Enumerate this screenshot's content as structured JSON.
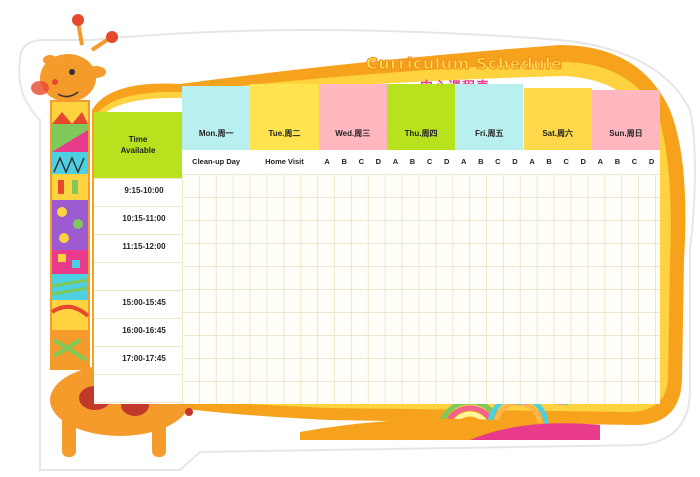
{
  "header": {
    "title_en": "Curriculum Schedule",
    "title_cn": "中心课程表"
  },
  "time_column": {
    "heading_line1": "Time",
    "heading_line2": "Available",
    "slots": [
      "9:15-10:00",
      "10:15-11:00",
      "11:15-12:00",
      "",
      "15:00-15:45",
      "16:00-16:45",
      "17:00-17:45"
    ]
  },
  "days": [
    {
      "label": "Mon.周一",
      "color": "#b8f0f0",
      "sub": "Clean-up Day"
    },
    {
      "label": "Tue.周二",
      "color": "#ffe44f",
      "sub": "Home Visit"
    },
    {
      "label": "Wed.周三",
      "color": "#ffb7bf",
      "sub": ""
    },
    {
      "label": "Thu.周四",
      "color": "#b8e21e",
      "sub": ""
    },
    {
      "label": "Fri.周五",
      "color": "#b8f0f0",
      "sub": ""
    },
    {
      "label": "Sat.周六",
      "color": "#ffd94a",
      "sub": ""
    },
    {
      "label": "Sun.周日",
      "color": "#ffb7bf",
      "sub": ""
    }
  ],
  "class_letters": [
    "A",
    "B",
    "C",
    "D"
  ],
  "colors": {
    "frame_orange": "#f7a21c",
    "frame_yellow": "#ffd23f",
    "giraffe_orange": "#f59b2c",
    "giraffe_spots": "#c0392b"
  }
}
